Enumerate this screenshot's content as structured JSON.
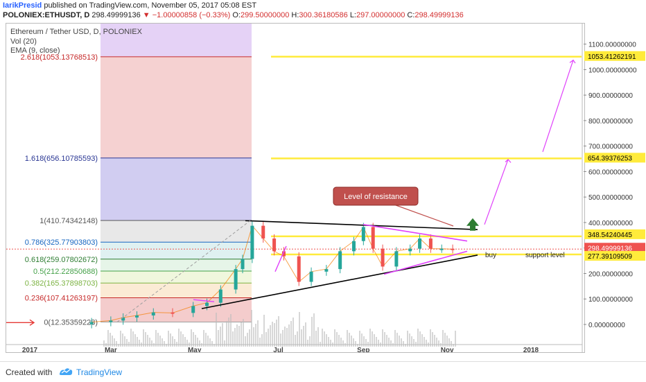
{
  "header": {
    "author": "IarikPresid",
    "published_text": " published on TradingView.com, November 05, 2017 05:08 EST",
    "symbol": "POLONIEX:ETHUSDT, D",
    "last": "298.49999136",
    "change": "−1.00000858 (−0.33%)",
    "o_label": "O:",
    "o_value": "299.50000000",
    "h_label": "H:",
    "h_value": "300.36180586",
    "l_label": "L:",
    "l_value": "297.00000000",
    "c_label": "C:",
    "c_value": "298.49999136"
  },
  "legend": {
    "title": "Ethereum / Tether USD, D, POLONIEX",
    "vol": "Vol (20)",
    "ema": "EMA (9, close)"
  },
  "fib_labels": [
    {
      "text": "2.618(1053.13768513)",
      "color": "#c62828"
    },
    {
      "text": "1.618(656.10785593)",
      "color": "#283593"
    },
    {
      "text": "1(410.74342148)",
      "color": "#555555"
    },
    {
      "text": "0.786(325.77903803)",
      "color": "#1565c0"
    },
    {
      "text": "0.618(259.07802672)",
      "color": "#2e7d32"
    },
    {
      "text": "0.5(212.22850688)",
      "color": "#43a047"
    },
    {
      "text": "0.382(165.37898703)",
      "color": "#7cb342"
    },
    {
      "text": "0.236(107.41263197)",
      "color": "#c62828"
    },
    {
      "text": "0(12.35359228)",
      "color": "#555555"
    }
  ],
  "price_labels": [
    {
      "text": "1053.41262191"
    },
    {
      "text": "654.39376253"
    },
    {
      "text": "348.54240445"
    },
    {
      "text": "298.49999136"
    },
    {
      "text": "277.39109509"
    }
  ],
  "annotations": {
    "resistance": "Level of resistance",
    "buy": "buy",
    "support": "support level"
  },
  "footer": {
    "created_with": "Created with",
    "brand": "TradingView"
  },
  "colors": {
    "up": "#26a69a",
    "down": "#ef5350",
    "fib_ext": "#ffeb3b",
    "magenta": "#e040fb",
    "resistance_box": "#c0504d"
  },
  "chart_data": {
    "type": "candlestick",
    "title": "Ethereum / Tether USD, D, POLONIEX",
    "x_ticks": [
      "2017",
      "Mar",
      "May",
      "Jul",
      "Sep",
      "Nov",
      "2018"
    ],
    "y_ticks": [
      "0.00000000",
      "100.00000000",
      "200.00000000",
      "300.00000000",
      "400.00000000",
      "500.00000000",
      "600.00000000",
      "700.00000000",
      "800.00000000",
      "900.00000000",
      "1000.00000000",
      "1100.00000000"
    ],
    "ylim": [
      -130,
      1180
    ],
    "series": [
      {
        "name": "ETHUSDT",
        "dates": [
          "2017-02-15",
          "2017-03-01",
          "2017-03-10",
          "2017-03-20",
          "2017-04-01",
          "2017-04-15",
          "2017-04-30",
          "2017-05-10",
          "2017-05-20",
          "2017-05-31",
          "2017-06-05",
          "2017-06-12",
          "2017-06-20",
          "2017-06-28",
          "2017-07-05",
          "2017-07-16",
          "2017-07-25",
          "2017-08-05",
          "2017-08-15",
          "2017-08-25",
          "2017-09-01",
          "2017-09-08",
          "2017-09-15",
          "2017-09-25",
          "2017-10-05",
          "2017-10-12",
          "2017-10-20",
          "2017-10-28",
          "2017-11-05"
        ],
        "close": [
          12,
          18,
          30,
          38,
          50,
          48,
          75,
          88,
          140,
          220,
          260,
          390,
          340,
          290,
          270,
          170,
          210,
          220,
          290,
          330,
          385,
          300,
          230,
          290,
          300,
          340,
          300,
          300,
          298
        ]
      }
    ],
    "fib_levels": [
      {
        "ratio": 0,
        "value": 12.35359228
      },
      {
        "ratio": 0.236,
        "value": 107.41263197
      },
      {
        "ratio": 0.382,
        "value": 165.37898703
      },
      {
        "ratio": 0.5,
        "value": 212.22850688
      },
      {
        "ratio": 0.618,
        "value": 259.07802672
      },
      {
        "ratio": 0.786,
        "value": 325.77903803
      },
      {
        "ratio": 1,
        "value": 410.74342148
      },
      {
        "ratio": 1.618,
        "value": 656.10785593
      },
      {
        "ratio": 2.618,
        "value": 1053.13768513
      }
    ],
    "horizontal_levels": [
      1053.41262191,
      654.39376253,
      348.54240445,
      277.39109509
    ],
    "last_price": 298.49999136
  }
}
